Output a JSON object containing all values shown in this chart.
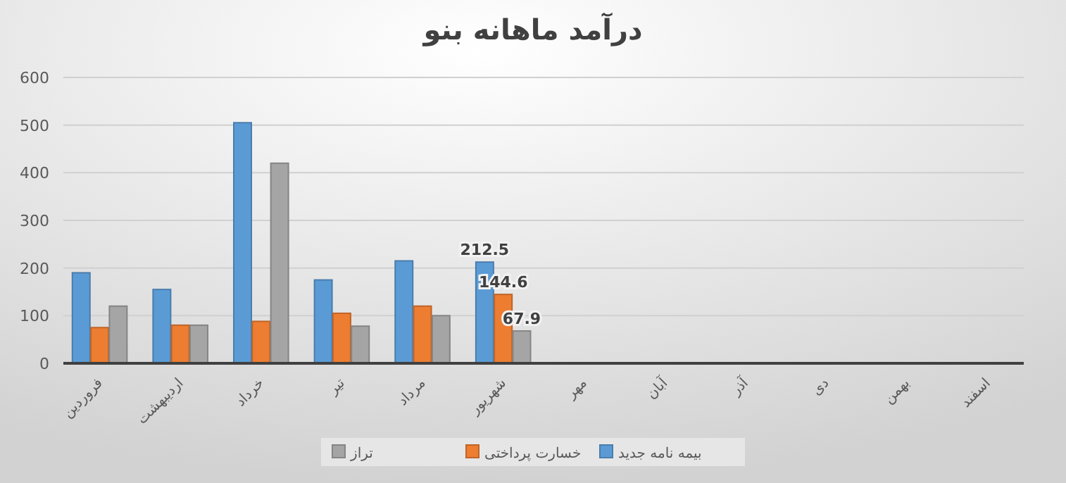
{
  "chart_data": {
    "type": "bar",
    "title": "درآمد ماهانه بنو",
    "categories": [
      "فروردین",
      "اردیبهشت",
      "خرداد",
      "تیر",
      "مرداد",
      "شهریور",
      "مهر",
      "آبان",
      "آذر",
      "دی",
      "بهمن",
      "اسفند"
    ],
    "series": [
      {
        "name": "بیمه نامه جدید",
        "color": "#5b9bd5",
        "values": [
          190,
          155,
          505,
          175,
          215,
          212.5,
          0,
          0,
          0,
          0,
          0,
          0
        ],
        "value_labels": [
          null,
          null,
          null,
          null,
          null,
          "212.5",
          null,
          null,
          null,
          null,
          null,
          null
        ]
      },
      {
        "name": "خسارت پرداختی",
        "color": "#ed7d31",
        "values": [
          75,
          80,
          88,
          105,
          120,
          144.6,
          0,
          0,
          0,
          0,
          0,
          0
        ],
        "value_labels": [
          null,
          null,
          null,
          null,
          null,
          "144.6",
          null,
          null,
          null,
          null,
          null,
          null
        ]
      },
      {
        "name": "تراز",
        "color": "#a5a5a5",
        "values": [
          120,
          80,
          420,
          78,
          100,
          67.9,
          0,
          0,
          0,
          0,
          0,
          0
        ],
        "value_labels": [
          null,
          null,
          null,
          null,
          null,
          "67.9",
          null,
          null,
          null,
          null,
          null,
          null
        ]
      }
    ],
    "ylim": [
      0,
      600
    ],
    "yticks": [
      0,
      100,
      200,
      300,
      400,
      500,
      600
    ],
    "grid": "y",
    "legend": "bottom"
  }
}
